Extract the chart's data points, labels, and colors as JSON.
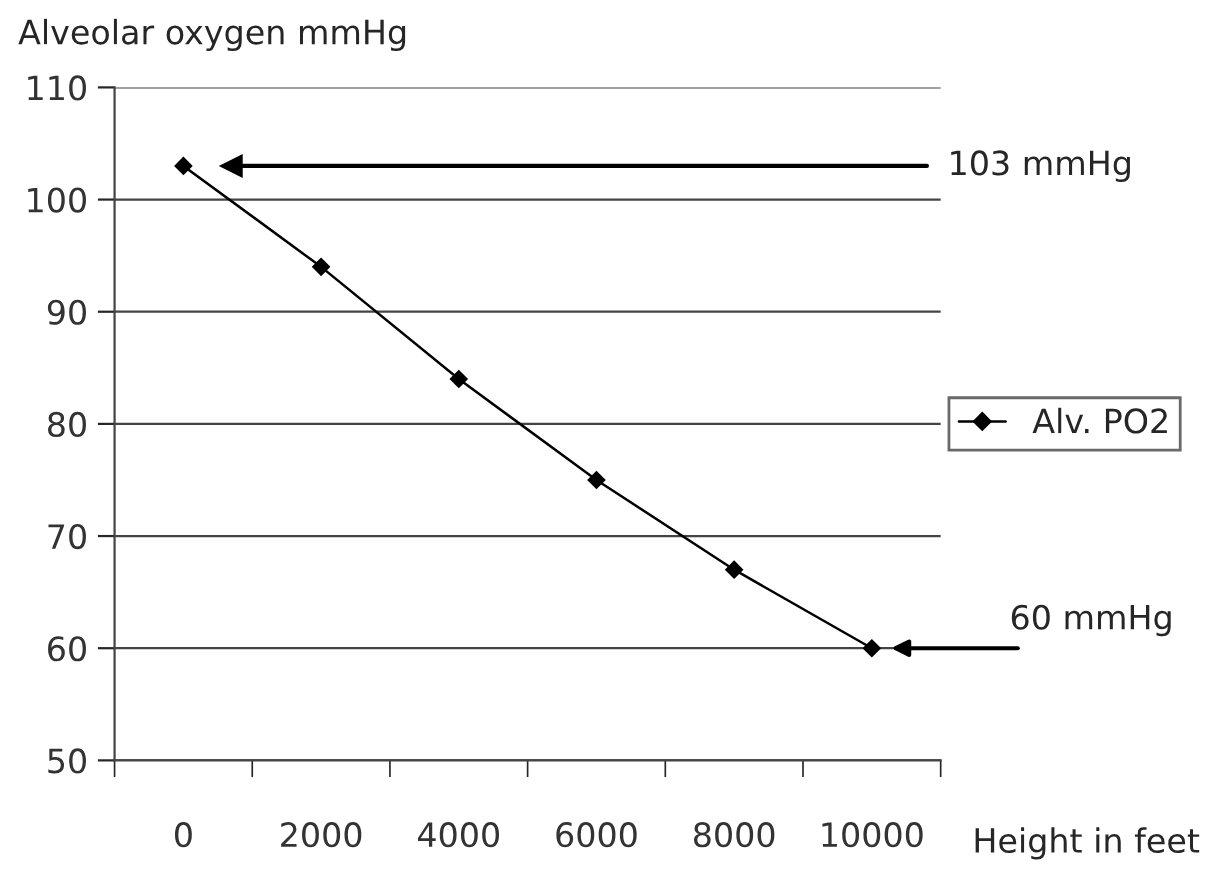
{
  "chart_data": {
    "type": "line",
    "ylabel": "Alveolar oxygen mmHg",
    "xlabel": "Height in feet",
    "categories": [
      "0",
      "2000",
      "4000",
      "6000",
      "8000",
      "10000"
    ],
    "series": [
      {
        "name": "Alv. PO2",
        "color": "#000000",
        "values": [
          103,
          94,
          84,
          75,
          67,
          60
        ]
      }
    ],
    "ylim": [
      50,
      110
    ],
    "yticks": [
      50,
      60,
      70,
      80,
      90,
      100,
      110
    ],
    "grid": "y",
    "legend": "right",
    "marker": "diamond",
    "line_style": "solid",
    "ref_lines": [
      {
        "axis": "y",
        "value": 103,
        "label": "103 mmHg",
        "color": "#000000"
      }
    ],
    "annotations": [
      "60 mmHg"
    ]
  }
}
